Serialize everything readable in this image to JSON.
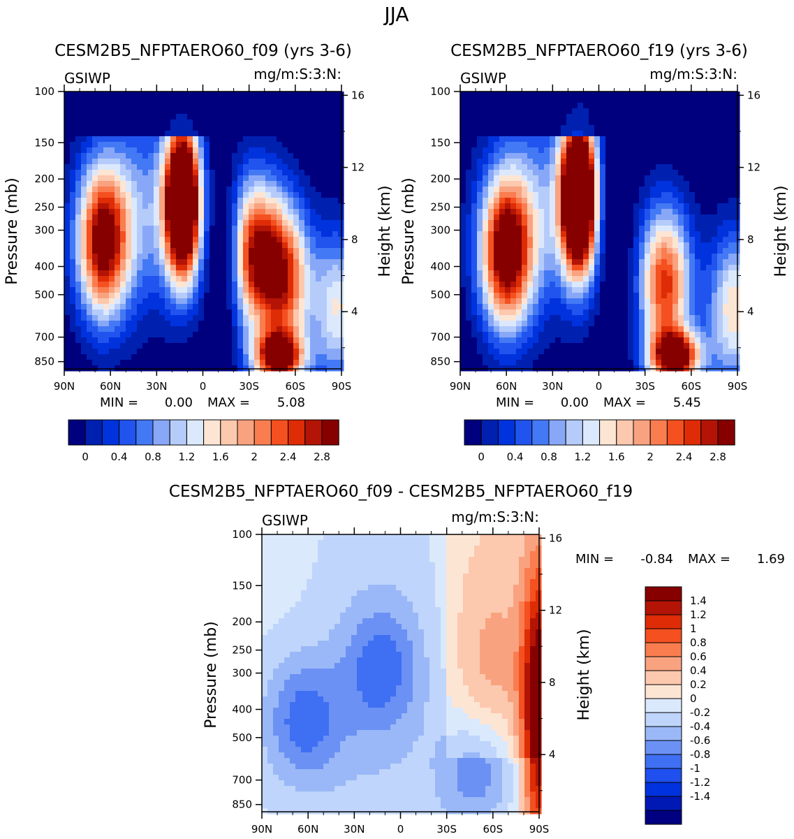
{
  "main_title": "JJA",
  "colors": {
    "seq": [
      "#00007f",
      "#0020b0",
      "#0033dd",
      "#2153ee",
      "#4479f5",
      "#88a8f7",
      "#b5ccfb",
      "#dce9fd",
      "#fde5d4",
      "#fcc8ae",
      "#f9a280",
      "#fa7d50",
      "#f45020",
      "#de2c06",
      "#b31406",
      "#870000"
    ],
    "div": [
      "#000080",
      "#0019b5",
      "#0033dd",
      "#1f4fee",
      "#3f6ff2",
      "#6b91f4",
      "#9ab8f7",
      "#bfd5fb",
      "#dbe9fd",
      "#fde5d4",
      "#fcc8ae",
      "#f9a280",
      "#fa7d50",
      "#f45020",
      "#de2c06",
      "#b31406",
      "#870000"
    ]
  },
  "chart_data": [
    {
      "id": "f09",
      "type": "contour",
      "title": "CESM2B5_NFPTAERO60_f09 (yrs 3-6)",
      "variable": "GSIWP",
      "units": "mg/m:S:3:N:",
      "xlabel": "",
      "ylabel": "Pressure (mb)",
      "ylabel_right": "Height (km)",
      "xticks": [
        "90N",
        "60N",
        "30N",
        "0",
        "30S",
        "60S",
        "90S"
      ],
      "yticks": [
        100,
        150,
        200,
        250,
        300,
        400,
        500,
        700,
        850
      ],
      "yticks_right": [
        16,
        12,
        8,
        4
      ],
      "min_label": "MIN =",
      "min_value": "0.00",
      "max_label": "MAX =",
      "max_value": "5.08",
      "levels_labels": [
        "0",
        "0.4",
        "0.8",
        "1.2",
        "1.6",
        "2",
        "2.4",
        "2.8"
      ],
      "features": [
        {
          "lat": 65,
          "p": 330,
          "v": 3.0
        },
        {
          "lat": 13,
          "p": 240,
          "v": 5.08
        },
        {
          "lat": -33,
          "p": 360,
          "v": 2.7
        },
        {
          "lat": -53,
          "p": 440,
          "v": 2.6
        },
        {
          "lat": -49,
          "p": 820,
          "v": 3.0
        },
        {
          "lat": -88,
          "p": 560,
          "v": 1.6
        }
      ]
    },
    {
      "id": "f19",
      "type": "contour",
      "title": "CESM2B5_NFPTAERO60_f19 (yrs 3-6)",
      "variable": "GSIWP",
      "units": "mg/m:S:3:N:",
      "xlabel": "",
      "ylabel": "Pressure (mb)",
      "ylabel_right": "Height (km)",
      "xticks": [
        "90N",
        "60N",
        "30N",
        "0",
        "30S",
        "60S",
        "90S"
      ],
      "yticks": [
        100,
        150,
        200,
        250,
        300,
        400,
        500,
        700,
        850
      ],
      "yticks_right": [
        16,
        12,
        8,
        4
      ],
      "min_label": "MIN =",
      "min_value": "0.00",
      "max_label": "MAX =",
      "max_value": "5.45",
      "levels_labels": [
        "0",
        "0.4",
        "0.8",
        "1.2",
        "1.6",
        "2",
        "2.4",
        "2.8"
      ],
      "features": [
        {
          "lat": 60,
          "p": 360,
          "v": 3.2
        },
        {
          "lat": 13,
          "p": 230,
          "v": 5.45
        },
        {
          "lat": -43,
          "p": 460,
          "v": 2.7
        },
        {
          "lat": -50,
          "p": 820,
          "v": 3.2
        },
        {
          "lat": -88,
          "p": 560,
          "v": 1.8
        }
      ]
    },
    {
      "id": "diff",
      "type": "contour",
      "title": "CESM2B5_NFPTAERO60_f09 - CESM2B5_NFPTAERO60_f19",
      "variable": "GSIWP",
      "units": "mg/m:S:3:N:",
      "xlabel": "",
      "ylabel": "Pressure (mb)",
      "ylabel_right": "Height (km)",
      "xticks": [
        "90N",
        "60N",
        "30N",
        "0",
        "30S",
        "60S",
        "90S"
      ],
      "yticks": [
        100,
        150,
        200,
        250,
        300,
        400,
        500,
        700,
        850
      ],
      "yticks_right": [
        16,
        12,
        8,
        4
      ],
      "min_label": "MIN =",
      "min_value": "-0.84",
      "max_label": "MAX =",
      "max_value": "1.69",
      "levels_labels": [
        "1.4",
        "1.2",
        "1",
        "0.8",
        "0.6",
        "0.4",
        "0.2",
        "0",
        "-0.2",
        "-0.4",
        "-0.6",
        "-0.8",
        "-1",
        "-1.2",
        "-1.4"
      ],
      "features": [
        {
          "lat": 63,
          "p": 440,
          "v": -0.75
        },
        {
          "lat": 12,
          "p": 290,
          "v": -0.6
        },
        {
          "lat": -52,
          "p": 650,
          "v": -0.84
        },
        {
          "lat": -60,
          "p": 360,
          "v": 0.45
        },
        {
          "lat": -90,
          "p": 420,
          "v": 1.69
        }
      ]
    }
  ]
}
